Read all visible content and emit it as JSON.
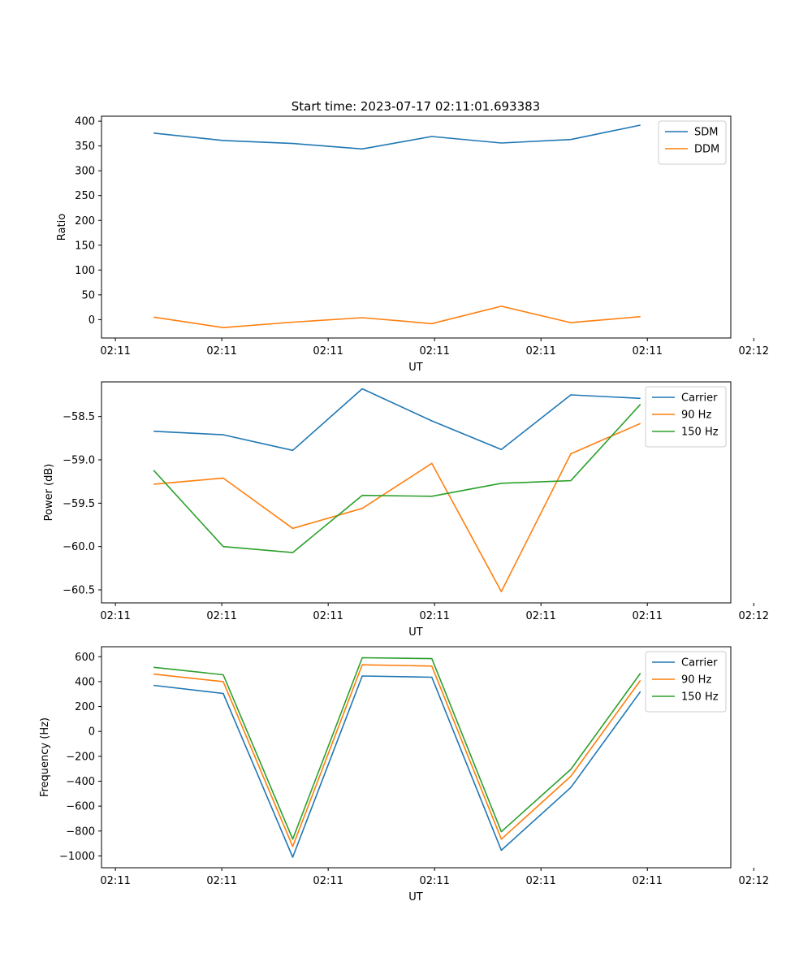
{
  "figure": {
    "title": "Start time: 2023-07-17 02:11:01.693383"
  },
  "chart_data": [
    {
      "type": "line",
      "xlabel": "UT",
      "ylabel": "Ratio",
      "x_tick_labels": [
        "02:11",
        "02:11",
        "02:11",
        "02:11",
        "02:11",
        "02:11",
        "02:12"
      ],
      "ylim": [
        -37,
        410
      ],
      "y_ticks": [
        0,
        50,
        100,
        150,
        200,
        250,
        300,
        350,
        400
      ],
      "y_tick_labels": [
        "0",
        "50",
        "100",
        "150",
        "200",
        "250",
        "300",
        "350",
        "400"
      ],
      "x": [
        0,
        1,
        2,
        3,
        4,
        5,
        6,
        7
      ],
      "series": [
        {
          "name": "SDM",
          "color": "#1f77b4",
          "values": [
            376,
            361,
            355,
            344,
            369,
            356,
            363,
            392
          ]
        },
        {
          "name": "DDM",
          "color": "#ff7f0e",
          "values": [
            5,
            -16,
            -5,
            4,
            -8,
            27,
            -6,
            6
          ]
        }
      ],
      "legend": "top-right"
    },
    {
      "type": "line",
      "xlabel": "UT",
      "ylabel": "Power (dB)",
      "x_tick_labels": [
        "02:11",
        "02:11",
        "02:11",
        "02:11",
        "02:11",
        "02:11",
        "02:12"
      ],
      "ylim": [
        -60.65,
        -58.1
      ],
      "y_ticks": [
        -60.5,
        -60.0,
        -59.5,
        -59.0,
        -58.5
      ],
      "y_tick_labels": [
        "−60.5",
        "−60.0",
        "−59.5",
        "−59.0",
        "−58.5"
      ],
      "x": [
        0,
        1,
        2,
        3,
        4,
        5,
        6,
        7
      ],
      "series": [
        {
          "name": "Carrier",
          "color": "#1f77b4",
          "values": [
            -58.67,
            -58.71,
            -58.89,
            -58.18,
            -58.55,
            -58.88,
            -58.25,
            -58.29
          ]
        },
        {
          "name": "90 Hz",
          "color": "#ff7f0e",
          "values": [
            -59.28,
            -59.21,
            -59.79,
            -59.56,
            -59.04,
            -60.52,
            -58.93,
            -58.58
          ]
        },
        {
          "name": "150 Hz",
          "color": "#2ca02c",
          "values": [
            -59.12,
            -60.0,
            -60.07,
            -59.41,
            -59.42,
            -59.27,
            -59.24,
            -58.36
          ]
        }
      ],
      "legend": "top-right"
    },
    {
      "type": "line",
      "xlabel": "UT",
      "ylabel": "Frequency (Hz)",
      "x_tick_labels": [
        "02:11",
        "02:11",
        "02:11",
        "02:11",
        "02:11",
        "02:11",
        "02:12"
      ],
      "ylim": [
        -1095,
        680
      ],
      "y_ticks": [
        -1000,
        -800,
        -600,
        -400,
        -200,
        0,
        200,
        400,
        600
      ],
      "y_tick_labels": [
        "−1000",
        "−800",
        "−600",
        "−400",
        "−200",
        "0",
        "200",
        "400",
        "600"
      ],
      "x": [
        0,
        1,
        2,
        3,
        4,
        5,
        6,
        7
      ],
      "series": [
        {
          "name": "Carrier",
          "color": "#1f77b4",
          "values": [
            370,
            305,
            -1010,
            445,
            435,
            -955,
            -450,
            320
          ]
        },
        {
          "name": "90 Hz",
          "color": "#ff7f0e",
          "values": [
            460,
            400,
            -925,
            535,
            525,
            -865,
            -360,
            410
          ]
        },
        {
          "name": "150 Hz",
          "color": "#2ca02c",
          "values": [
            515,
            455,
            -865,
            592,
            585,
            -805,
            -305,
            467
          ]
        }
      ],
      "legend": "top-right"
    }
  ]
}
